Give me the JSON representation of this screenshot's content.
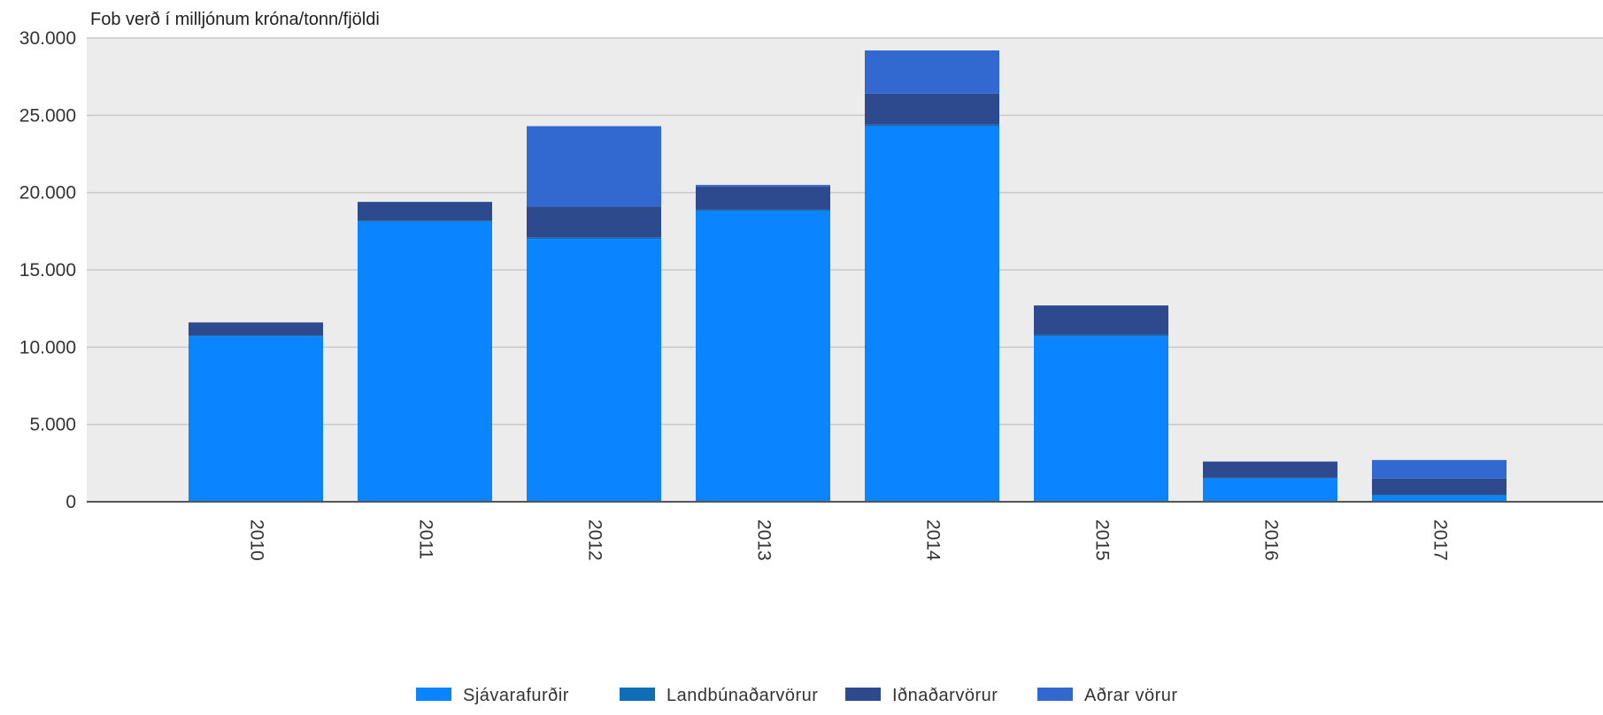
{
  "chart_data": {
    "type": "bar",
    "stacked": true,
    "ylabel": "Fob verð í milljónum króna/tonn/fjöldi",
    "categories": [
      "2010",
      "2011",
      "2012",
      "2013",
      "2014",
      "2015",
      "2016",
      "2017"
    ],
    "series": [
      {
        "name": "Sjávarafurðir",
        "color": "#0a84ff",
        "values": [
          10700,
          18100,
          17000,
          18800,
          24300,
          10700,
          1500,
          400
        ]
      },
      {
        "name": "Landbúnaðarvörur",
        "color": "#0f6eb8",
        "values": [
          50,
          100,
          100,
          100,
          100,
          100,
          50,
          50
        ]
      },
      {
        "name": "Iðnaðarvörur",
        "color": "#2d4a8f",
        "values": [
          850,
          1200,
          2000,
          1500,
          2000,
          1900,
          1050,
          1050
        ]
      },
      {
        "name": "Aðrar vörur",
        "color": "#3169d0",
        "values": [
          0,
          0,
          5200,
          100,
          2800,
          0,
          0,
          1200
        ]
      }
    ],
    "ylim": [
      0,
      30000
    ],
    "yticks": [
      0,
      5000,
      10000,
      15000,
      20000,
      25000,
      30000
    ],
    "ytick_labels": [
      "0",
      "5.000",
      "10.000",
      "15.000",
      "20.000",
      "25.000",
      "30.000"
    ],
    "grid": true,
    "plot_background": "#ececec",
    "legend_position": "bottom-center"
  }
}
